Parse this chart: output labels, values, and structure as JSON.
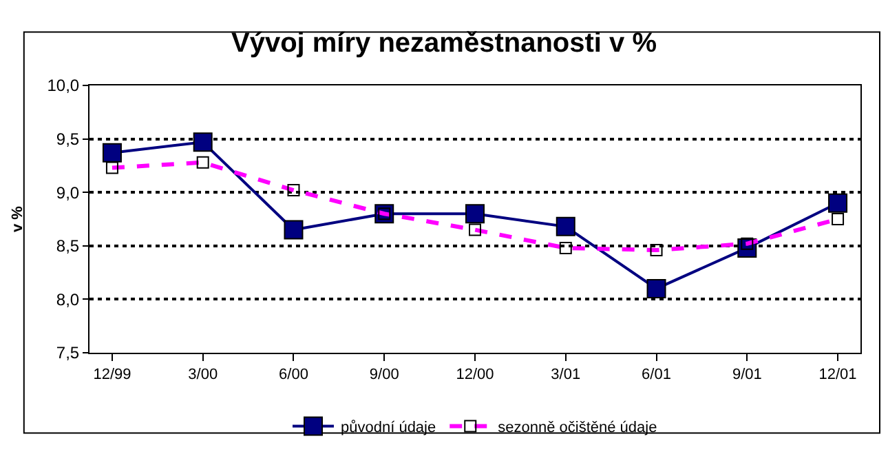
{
  "chart_data": {
    "type": "line",
    "title": "Vývoj míry nezaměstnanosti v %",
    "ylabel": "v %",
    "categories": [
      "12/99",
      "3/00",
      "6/00",
      "9/00",
      "12/00",
      "3/01",
      "6/01",
      "9/01",
      "12/01"
    ],
    "series": [
      {
        "name": "původní údaje",
        "color": "#000080",
        "marker": "square",
        "line_style": "solid",
        "values": [
          9.37,
          9.47,
          8.65,
          8.8,
          8.8,
          8.68,
          8.1,
          8.48,
          8.9
        ]
      },
      {
        "name": "sezonně očištěné údaje",
        "color": "#ff00ff",
        "marker": "square-open",
        "line_style": "dashed",
        "values": [
          9.23,
          9.28,
          9.02,
          8.8,
          8.65,
          8.48,
          8.46,
          8.52,
          8.75
        ]
      }
    ],
    "ylim": [
      7.5,
      10.0
    ],
    "yticks": [
      {
        "value": 7.5,
        "label": "7,5"
      },
      {
        "value": 8.0,
        "label": "8,0"
      },
      {
        "value": 8.5,
        "label": "8,5"
      },
      {
        "value": 9.0,
        "label": "9,0"
      },
      {
        "value": 9.5,
        "label": "9,5"
      },
      {
        "value": 10.0,
        "label": "10,0"
      }
    ],
    "grid": "y",
    "legend": "bottom"
  }
}
